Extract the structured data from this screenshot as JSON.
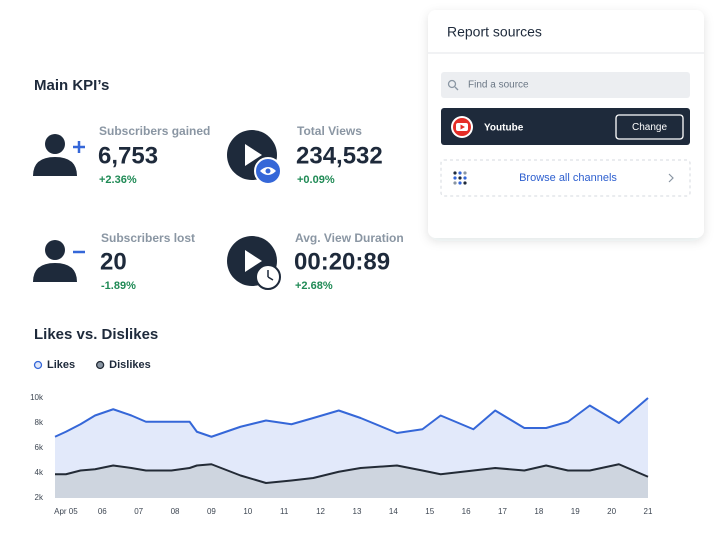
{
  "report_sources": {
    "title": "Report sources",
    "search_placeholder": "Find a source",
    "selected": {
      "name": "Youtube",
      "button": "Change"
    },
    "browse": "Browse all channels"
  },
  "kpi_title": "Main KPI’s",
  "kpis": [
    {
      "label": "Subscribers gained",
      "value": "6,753",
      "change": "+2.36%"
    },
    {
      "label": "Total Views",
      "value": "234,532",
      "change": "+0.09%"
    },
    {
      "label": "Subscribers lost",
      "value": "20",
      "change": "-1.89%"
    },
    {
      "label": "Avg. View Duration",
      "value": "00:20:89",
      "change": "+2.68%"
    }
  ],
  "chart_data": {
    "type": "line",
    "title": "Likes vs. Dislikes",
    "x": [
      4.7,
      5.0,
      5.4,
      5.8,
      6.3,
      6.8,
      7.2,
      7.9,
      8.4,
      8.6,
      9.0,
      9.8,
      10.5,
      11.2,
      11.8,
      12.5,
      13.1,
      14.1,
      14.8,
      15.3,
      16.2,
      16.8,
      17.6,
      18.2,
      18.8,
      19.4,
      20.2,
      21.0
    ],
    "xlim": [
      4.7,
      21.0
    ],
    "xticks": [
      {
        "value": 5,
        "label": "Apr 05"
      },
      {
        "value": 6,
        "label": "06"
      },
      {
        "value": 7,
        "label": "07"
      },
      {
        "value": 8,
        "label": "08"
      },
      {
        "value": 9,
        "label": "09"
      },
      {
        "value": 10,
        "label": "10"
      },
      {
        "value": 11,
        "label": "11"
      },
      {
        "value": 12,
        "label": "12"
      },
      {
        "value": 13,
        "label": "13"
      },
      {
        "value": 14,
        "label": "14"
      },
      {
        "value": 15,
        "label": "15"
      },
      {
        "value": 16,
        "label": "16"
      },
      {
        "value": 17,
        "label": "17"
      },
      {
        "value": 18,
        "label": "18"
      },
      {
        "value": 19,
        "label": "19"
      },
      {
        "value": 20,
        "label": "20"
      },
      {
        "value": 21,
        "label": "21"
      }
    ],
    "ylim": [
      2000,
      10000
    ],
    "yticks": [
      {
        "value": 2000,
        "label": "2k"
      },
      {
        "value": 4000,
        "label": "4k"
      },
      {
        "value": 6000,
        "label": "6k"
      },
      {
        "value": 8000,
        "label": "8k"
      },
      {
        "value": 10000,
        "label": "10k"
      }
    ],
    "legend": "top-left",
    "series": [
      {
        "name": "Likes",
        "color": "#3567d8",
        "values": [
          6900,
          7300,
          7900,
          8600,
          9100,
          8600,
          8100,
          8100,
          8100,
          7300,
          6900,
          7700,
          8200,
          7900,
          8400,
          9000,
          8400,
          7200,
          7500,
          8600,
          7500,
          9000,
          7600,
          7600,
          8100,
          9400,
          8000,
          10000
        ]
      },
      {
        "name": "Dislikes",
        "color": "#232b36",
        "values": [
          3900,
          3900,
          4200,
          4300,
          4600,
          4400,
          4200,
          4200,
          4400,
          4600,
          4700,
          3800,
          3200,
          3400,
          3600,
          4100,
          4400,
          4600,
          4200,
          3900,
          4200,
          4400,
          4200,
          4600,
          4200,
          4200,
          4700,
          3700
        ]
      }
    ]
  }
}
